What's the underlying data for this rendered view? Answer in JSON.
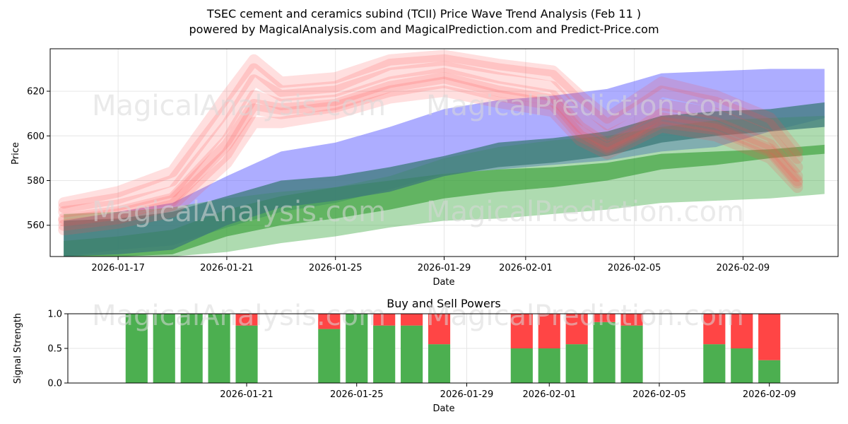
{
  "title_line1": "TSEC cement and ceramics subind (TCII) Price Wave Trend Analysis (Feb 11 )",
  "title_line2": "powered by MagicalAnalysis.com and MagicalPrediction.com and Predict-Price.com",
  "watermarks": [
    "MagicalAnalysis.com",
    "MagicalPrediction.com"
  ],
  "chart_data": [
    {
      "type": "area",
      "name": "price-wave-chart",
      "xlabel": "Date",
      "ylabel": "Price",
      "xlim": [
        "2026-01-14T12:00",
        "2026-02-12T12:00"
      ],
      "ylim": [
        546,
        639
      ],
      "yticks": [
        560,
        580,
        600,
        620
      ],
      "xticks": [
        "2026-01-17",
        "2026-01-21",
        "2026-01-25",
        "2026-01-29",
        "2026-02-01",
        "2026-02-05",
        "2026-02-09"
      ],
      "grid": true,
      "colors": {
        "red": "#ff4040",
        "blue": "#2020ff",
        "green": "#2e9a2e",
        "teal": "#2a7a7a",
        "purple": "#a040c0",
        "brown": "#a07040"
      },
      "series": [
        {
          "name": "blue-band",
          "color": "#6a6aff",
          "opacity": 0.55,
          "x": [
            "2026-01-15",
            "2026-01-17",
            "2026-01-19",
            "2026-01-21",
            "2026-01-23",
            "2026-01-25",
            "2026-01-27",
            "2026-01-29",
            "2026-01-31",
            "2026-02-02",
            "2026-02-04",
            "2026-02-06",
            "2026-02-08",
            "2026-02-10",
            "2026-02-12"
          ],
          "upper": [
            562,
            566,
            570,
            582,
            593,
            597,
            604,
            612,
            616,
            618,
            621,
            628,
            629,
            630,
            630
          ],
          "lower": [
            546,
            549,
            551,
            559,
            566,
            570,
            576,
            583,
            585,
            587,
            589,
            593,
            595,
            602,
            608
          ]
        },
        {
          "name": "green-band-wide",
          "color": "#4caf50",
          "opacity": 0.45,
          "x": [
            "2026-01-15",
            "2026-01-17",
            "2026-01-19",
            "2026-01-21",
            "2026-01-23",
            "2026-01-25",
            "2026-01-27",
            "2026-01-29",
            "2026-01-31",
            "2026-02-02",
            "2026-02-04",
            "2026-02-06",
            "2026-02-08",
            "2026-02-10",
            "2026-02-12"
          ],
          "upper": [
            565,
            566,
            568,
            572,
            575,
            577,
            582,
            590,
            595,
            598,
            600,
            604,
            607,
            608,
            609
          ],
          "lower": [
            546,
            546,
            546,
            548,
            552,
            555,
            559,
            562,
            563,
            565,
            567,
            570,
            571,
            572,
            574
          ]
        },
        {
          "name": "green-band",
          "color": "#2e9a2e",
          "opacity": 0.6,
          "x": [
            "2026-01-15",
            "2026-01-17",
            "2026-01-19",
            "2026-01-21",
            "2026-01-23",
            "2026-01-25",
            "2026-01-27",
            "2026-01-29",
            "2026-01-31",
            "2026-02-02",
            "2026-02-04",
            "2026-02-06",
            "2026-02-08",
            "2026-02-10",
            "2026-02-12"
          ],
          "upper": [
            553,
            555,
            558,
            567,
            573,
            577,
            580,
            583,
            585,
            586,
            588,
            592,
            593,
            594,
            596
          ],
          "lower": [
            546,
            546,
            547,
            555,
            560,
            563,
            567,
            572,
            575,
            577,
            580,
            585,
            587,
            590,
            592
          ]
        },
        {
          "name": "teal-band",
          "color": "#3c7a7a",
          "opacity": 0.75,
          "x": [
            "2026-01-15",
            "2026-01-17",
            "2026-01-19",
            "2026-01-21",
            "2026-01-23",
            "2026-01-25",
            "2026-01-27",
            "2026-01-29",
            "2026-01-31",
            "2026-02-02",
            "2026-02-04",
            "2026-02-06",
            "2026-02-08",
            "2026-02-10",
            "2026-02-12"
          ],
          "upper": [
            562,
            563,
            566,
            573,
            580,
            582,
            586,
            591,
            597,
            599,
            602,
            609,
            611,
            612,
            615
          ],
          "lower": [
            546,
            547,
            549,
            560,
            568,
            571,
            575,
            582,
            586,
            588,
            591,
            597,
            600,
            602,
            604
          ]
        }
      ],
      "wave_lines": {
        "color": "#ff4d4d",
        "opacity": 0.18,
        "x": [
          "2026-01-15",
          "2026-01-17",
          "2026-01-19",
          "2026-01-21",
          "2026-01-22",
          "2026-01-23",
          "2026-01-25",
          "2026-01-27",
          "2026-01-29",
          "2026-01-31",
          "2026-02-02",
          "2026-02-03",
          "2026-02-04",
          "2026-02-05",
          "2026-02-06",
          "2026-02-08",
          "2026-02-10",
          "2026-02-11"
        ],
        "lines": [
          [
            568,
            572,
            580,
            612,
            630,
            620,
            622,
            632,
            634,
            630,
            627,
            615,
            605,
            612,
            620,
            615,
            605,
            590
          ],
          [
            566,
            569,
            575,
            605,
            625,
            618,
            620,
            628,
            631,
            626,
            622,
            608,
            600,
            606,
            614,
            610,
            600,
            586
          ],
          [
            563,
            566,
            572,
            598,
            618,
            614,
            616,
            624,
            628,
            622,
            618,
            604,
            596,
            602,
            610,
            606,
            596,
            582
          ],
          [
            560,
            563,
            569,
            592,
            612,
            610,
            613,
            620,
            624,
            618,
            614,
            600,
            594,
            600,
            606,
            603,
            593,
            579
          ],
          [
            558,
            561,
            566,
            588,
            606,
            606,
            610,
            617,
            620,
            615,
            611,
            598,
            592,
            598,
            604,
            600,
            590,
            577
          ],
          [
            570,
            575,
            584,
            618,
            634,
            624,
            626,
            634,
            636,
            632,
            629,
            618,
            608,
            616,
            624,
            618,
            608,
            593
          ],
          [
            562,
            565,
            571,
            596,
            614,
            612,
            614,
            622,
            626,
            620,
            616,
            602,
            595,
            601,
            608,
            604,
            594,
            580
          ]
        ]
      }
    },
    {
      "type": "bar",
      "name": "buy-sell-powers",
      "title": "Buy and Sell Powers",
      "xlabel": "Date",
      "ylabel": "Signal Strength",
      "ylim": [
        0,
        1
      ],
      "yticks": [
        "0.0",
        "0.5",
        "1.0"
      ],
      "xticks": [
        "2026-01-21",
        "2026-01-25",
        "2026-01-29",
        "2026-02-01",
        "2026-02-05",
        "2026-02-09"
      ],
      "colors": {
        "buy": "#4caf50",
        "sell": "#ff4545"
      },
      "categories": [
        "2026-01-17",
        "2026-01-18",
        "2026-01-19",
        "2026-01-20",
        "2026-01-21",
        "2026-01-24",
        "2026-01-25",
        "2026-01-26",
        "2026-01-27",
        "2026-01-28",
        "2026-01-31",
        "2026-02-01",
        "2026-02-02",
        "2026-02-03",
        "2026-02-04",
        "2026-02-07",
        "2026-02-08",
        "2026-02-09"
      ],
      "series": [
        {
          "name": "Buy",
          "values": [
            1.0,
            1.0,
            1.0,
            1.0,
            0.83,
            0.78,
            1.0,
            0.83,
            0.83,
            0.56,
            0.5,
            0.5,
            0.56,
            0.88,
            0.83,
            0.56,
            0.5,
            0.33
          ]
        },
        {
          "name": "Sell",
          "values": [
            0.0,
            0.0,
            0.0,
            0.0,
            0.17,
            0.22,
            0.0,
            0.17,
            0.17,
            0.44,
            0.5,
            0.5,
            0.44,
            0.12,
            0.17,
            0.44,
            0.5,
            0.67
          ]
        }
      ]
    }
  ]
}
